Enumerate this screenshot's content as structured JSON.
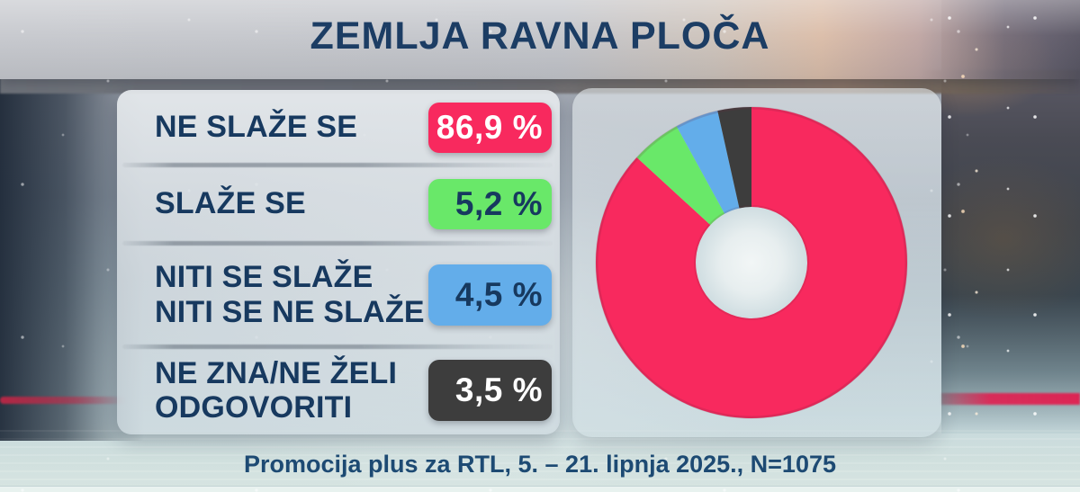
{
  "header": {
    "title": "ZEMLJA RAVNA PLOČA"
  },
  "footer": {
    "source_line": "Promocija plus za RTL, 5. – 21. lipnja 2025., N=1075"
  },
  "legend": {
    "items": [
      {
        "label_lines": [
          "NE SLAŽE SE"
        ],
        "pct_label": "86,9 %",
        "value": 86.9,
        "color": "#F8295E",
        "text_color": "#FFFFFF"
      },
      {
        "label_lines": [
          "SLAŽE SE"
        ],
        "pct_label": "5,2 %",
        "value": 5.2,
        "color": "#69E869",
        "text_color": "#17395F"
      },
      {
        "label_lines": [
          "NITI SE SLAŽE",
          "NITI SE NE SLAŽE"
        ],
        "pct_label": "4,5 %",
        "value": 4.5,
        "color": "#63ADEA",
        "text_color": "#17395F"
      },
      {
        "label_lines": [
          "NE ZNA/NE ŽELI",
          "ODGOVORITI"
        ],
        "pct_label": "3,5 %",
        "value": 3.5,
        "color": "#3D3D3D",
        "text_color": "#FFFFFF"
      }
    ]
  },
  "chart_data": {
    "type": "pie",
    "subtype": "donut",
    "title": "ZEMLJA RAVNA PLOČA",
    "categories": [
      "NE SLAŽE SE",
      "SLAŽE SE",
      "NITI SE SLAŽE NITI SE NE SLAŽE",
      "NE ZNA/NE ŽELI ODGOVORITI"
    ],
    "values": [
      86.9,
      5.2,
      4.5,
      3.5
    ],
    "unit": "%",
    "colors": [
      "#F8295E",
      "#69E869",
      "#63ADEA",
      "#3D3D3D"
    ],
    "start_angle_deg": 0,
    "direction": "clockwise",
    "inner_radius_ratio": 0.36,
    "legend_position": "left"
  }
}
